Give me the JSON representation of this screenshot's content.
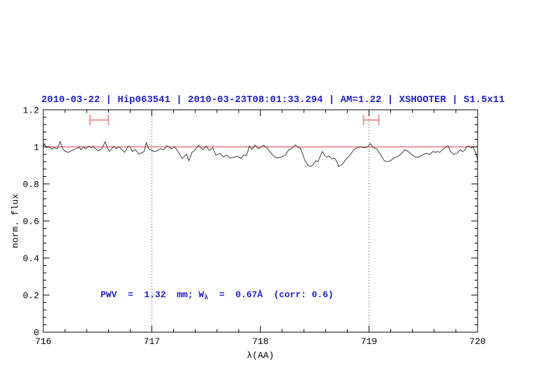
{
  "chart_data": {
    "type": "line",
    "title": "2010-03-22 | Hip063541 | 2010-03-23T08:01:33.294 | AM=1.22 | XSHOOTER | S1.5x11",
    "title_color": "#2020d0",
    "xlabel": "λ(AA)",
    "ylabel": "norm. flux",
    "xlim": [
      716,
      720
    ],
    "ylim": [
      0,
      1.2
    ],
    "x_tick_values": [
      716,
      717,
      718,
      719,
      720
    ],
    "x_tick_labels": [
      "716",
      "717",
      "718",
      "719",
      "720"
    ],
    "x_minor_step": 0.2,
    "y_tick_values": [
      0,
      0.2,
      0.4,
      0.6,
      0.8,
      1,
      1.2
    ],
    "y_tick_labels": [
      "0",
      "0.2",
      "0.4",
      "0.6",
      "0.8",
      "1",
      "1.2"
    ],
    "y_minor_step": 0.04,
    "grid": false,
    "legend": "none",
    "vertical_dotted_lines": [
      717,
      719
    ],
    "dotted_line_color": "#383838",
    "reference_line": {
      "y": 1.0,
      "color": "#e05f5f",
      "meaning": "continuum"
    },
    "markers": [
      {
        "type": "horizontal-errorbar",
        "x_min": 716.43,
        "x_center": 716.515,
        "x_max": 716.6,
        "y": 1.145,
        "cap_half_height": 0.027,
        "color": "#f09090"
      },
      {
        "type": "horizontal-errorbar",
        "x_min": 718.95,
        "x_center": 719.02,
        "x_max": 719.09,
        "y": 1.145,
        "cap_half_height": 0.027,
        "color": "#f09090"
      }
    ],
    "annotation": {
      "text": "PWV  =  1.32  mm; Wλ  =  0.67Å  (corr: 0.6)",
      "prefix": "PWV  =  1.32  mm; W",
      "subscript": "λ",
      "suffix": "  =  0.67Å  (corr: 0.6)",
      "x": 716.53,
      "y": 0.2,
      "color": "#2020d0"
    },
    "series": [
      {
        "name": "normalized spectrum",
        "color": "#3c3c3c",
        "x": [
          716.0,
          716.01,
          716.03,
          716.05,
          716.08,
          716.1,
          716.13,
          716.155,
          716.18,
          716.2,
          716.23,
          716.27,
          716.3,
          716.33,
          716.35,
          716.37,
          716.39,
          716.42,
          716.44,
          716.46,
          716.48,
          716.51,
          716.54,
          716.57,
          716.59,
          716.61,
          716.63,
          716.65,
          716.67,
          716.7,
          716.72,
          716.75,
          716.78,
          716.8,
          716.82,
          716.85,
          716.88,
          716.9,
          716.93,
          716.95,
          716.97,
          716.99,
          717.02,
          717.05,
          717.08,
          717.11,
          717.14,
          717.18,
          717.21,
          717.24,
          717.28,
          717.32,
          717.34,
          717.37,
          717.4,
          717.43,
          717.47,
          717.5,
          717.53,
          717.56,
          717.59,
          717.63,
          717.66,
          717.69,
          717.72,
          717.76,
          717.79,
          717.82,
          717.85,
          717.87,
          717.9,
          717.92,
          717.95,
          717.98,
          718.03,
          718.06,
          718.1,
          718.13,
          718.16,
          718.19,
          718.23,
          718.26,
          718.29,
          718.32,
          718.35,
          718.37,
          718.39,
          718.41,
          718.44,
          718.46,
          718.48,
          718.51,
          718.53,
          718.57,
          718.59,
          718.61,
          718.63,
          718.66,
          718.68,
          718.7,
          718.72,
          718.74,
          718.76,
          718.79,
          718.81,
          718.83,
          718.86,
          718.89,
          718.92,
          718.96,
          718.99,
          719.01,
          719.04,
          719.07,
          719.11,
          719.14,
          719.17,
          719.2,
          719.23,
          719.27,
          719.3,
          719.33,
          719.36,
          719.4,
          719.43,
          719.46,
          719.49,
          719.52,
          719.56,
          719.59,
          719.61,
          719.63,
          719.65,
          719.69,
          719.71,
          719.73,
          719.75,
          719.78,
          719.81,
          719.84,
          719.86,
          719.88,
          719.9,
          719.92,
          719.94,
          719.96,
          719.99,
          720.0
        ],
        "y": [
          0.998,
          1.018,
          0.995,
          1.002,
          0.988,
          0.996,
          0.99,
          1.03,
          0.99,
          0.976,
          0.97,
          0.982,
          0.99,
          0.998,
          0.985,
          1.0,
          0.99,
          1.004,
          0.994,
          1.004,
          0.99,
          0.98,
          0.99,
          1.028,
          0.995,
          0.976,
          0.99,
          1.004,
          0.99,
          1.0,
          0.986,
          0.97,
          1.004,
          0.999,
          0.975,
          0.985,
          0.96,
          0.966,
          0.975,
          1.024,
          0.99,
          0.985,
          0.975,
          0.978,
          0.99,
          0.985,
          1.006,
          0.99,
          1.0,
          0.975,
          0.937,
          0.96,
          0.924,
          0.97,
          0.985,
          1.008,
          0.985,
          1.005,
          0.98,
          0.995,
          0.955,
          0.965,
          0.945,
          0.955,
          0.94,
          0.945,
          0.95,
          0.938,
          0.957,
          0.952,
          1.005,
          0.985,
          1.01,
          0.99,
          1.008,
          0.995,
          0.965,
          0.945,
          0.94,
          0.945,
          0.955,
          0.985,
          0.992,
          1.01,
          0.995,
          0.993,
          0.96,
          0.925,
          0.9,
          0.895,
          0.9,
          0.925,
          0.92,
          0.975,
          0.955,
          0.945,
          0.95,
          0.935,
          0.94,
          0.925,
          0.895,
          0.9,
          0.91,
          0.935,
          0.945,
          0.96,
          0.985,
          0.995,
          1.0,
          0.995,
          1.0,
          1.018,
          0.995,
          0.99,
          0.955,
          0.925,
          0.92,
          0.925,
          0.94,
          0.95,
          0.965,
          0.985,
          0.975,
          0.955,
          0.945,
          0.945,
          0.955,
          0.965,
          0.96,
          0.975,
          0.97,
          0.975,
          0.97,
          0.99,
          1.0,
          1.005,
          0.975,
          0.96,
          0.965,
          0.985,
          0.975,
          0.98,
          1.0,
          1.005,
          0.995,
          1.0,
          0.955,
          0.93
        ]
      }
    ]
  }
}
